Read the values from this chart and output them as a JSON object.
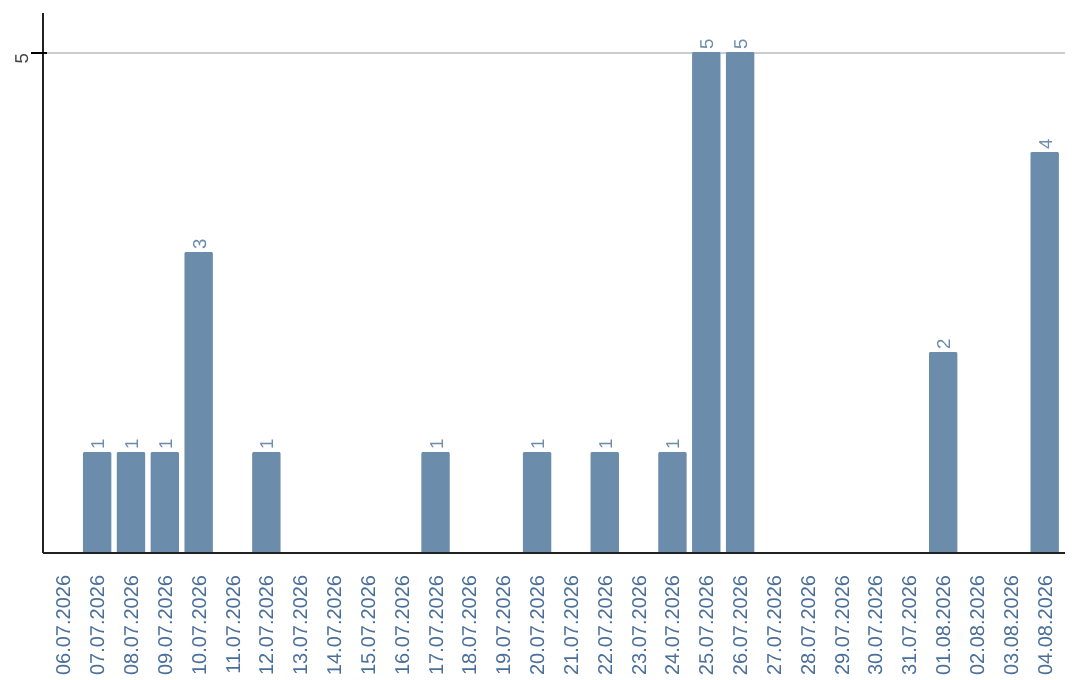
{
  "chart_data": {
    "type": "bar",
    "categories": [
      "06.07.2026",
      "07.07.2026",
      "08.07.2026",
      "09.07.2026",
      "10.07.2026",
      "11.07.2026",
      "12.07.2026",
      "13.07.2026",
      "14.07.2026",
      "15.07.2026",
      "16.07.2026",
      "17.07.2026",
      "18.07.2026",
      "19.07.2026",
      "20.07.2026",
      "21.07.2026",
      "22.07.2026",
      "23.07.2026",
      "24.07.2026",
      "25.07.2026",
      "26.07.2026",
      "27.07.2026",
      "28.07.2026",
      "29.07.2026",
      "30.07.2026",
      "31.07.2026",
      "01.08.2026",
      "02.08.2026",
      "03.08.2026",
      "04.08.2026"
    ],
    "values": [
      0,
      1,
      1,
      1,
      3,
      0,
      1,
      0,
      0,
      0,
      0,
      1,
      0,
      0,
      1,
      0,
      1,
      0,
      1,
      5,
      5,
      0,
      0,
      0,
      0,
      0,
      2,
      0,
      0,
      4
    ],
    "value_labels": [
      null,
      "1",
      "1",
      "1",
      "3",
      null,
      "1",
      null,
      null,
      null,
      null,
      "1",
      null,
      null,
      "1",
      null,
      "1",
      null,
      "1",
      "5",
      "5",
      null,
      null,
      null,
      null,
      null,
      "2",
      null,
      null,
      "4"
    ],
    "color": "#6b8cab",
    "ylim": [
      0,
      5.4
    ],
    "yticks": [
      5
    ],
    "grid": "y"
  }
}
